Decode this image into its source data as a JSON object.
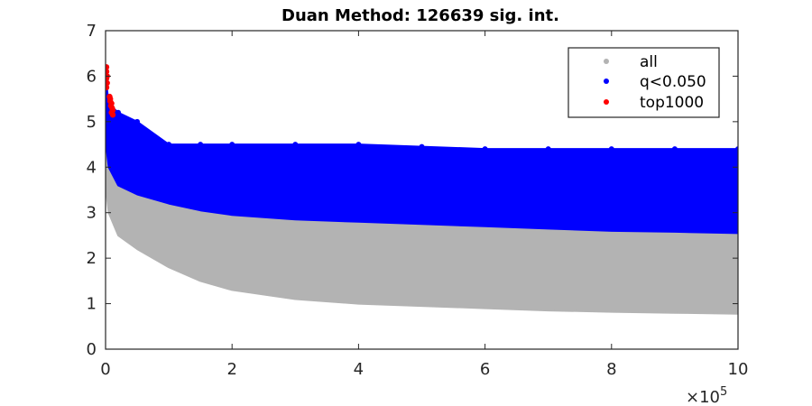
{
  "chart_data": {
    "type": "scatter",
    "title": "Duan Method: 126639 sig. int.",
    "xlabel": "",
    "ylabel": "",
    "x_multiplier_label": "×10",
    "x_multiplier_exponent": "5",
    "xlim": [
      0,
      10
    ],
    "ylim": [
      0,
      7
    ],
    "xticks": [
      "0",
      "2",
      "4",
      "6",
      "8",
      "10"
    ],
    "yticks": [
      "0",
      "1",
      "2",
      "3",
      "4",
      "5",
      "6",
      "7"
    ],
    "legend_position": "top-right",
    "grid": false,
    "series": [
      {
        "name": "all",
        "color": "#b3b3b3",
        "band": {
          "x": [
            0.0,
            0.05,
            0.2,
            0.5,
            1.0,
            1.5,
            2.0,
            3.0,
            4.0,
            5.0,
            6.0,
            7.0,
            8.0,
            9.0,
            10.0
          ],
          "lower": [
            3.6,
            3.0,
            2.5,
            2.2,
            1.8,
            1.5,
            1.3,
            1.1,
            1.0,
            0.95,
            0.9,
            0.85,
            0.82,
            0.8,
            0.78
          ],
          "upper": [
            5.0,
            4.4,
            4.0,
            3.6,
            3.3,
            3.1,
            3.0,
            2.9,
            2.8,
            2.75,
            2.7,
            2.65,
            2.6,
            2.58,
            2.55
          ]
        }
      },
      {
        "name": "q<0.050",
        "color": "#0000ff",
        "band": {
          "x": [
            0.0,
            0.05,
            0.2,
            0.5,
            1.0,
            1.5,
            2.0,
            3.0,
            4.0,
            5.0,
            6.0,
            7.0,
            8.0,
            9.0,
            10.0
          ],
          "lower": [
            4.6,
            4.0,
            3.6,
            3.4,
            3.2,
            3.05,
            2.95,
            2.85,
            2.8,
            2.75,
            2.7,
            2.65,
            2.6,
            2.58,
            2.55
          ],
          "upper": [
            6.0,
            5.4,
            5.2,
            5.0,
            4.5,
            4.5,
            4.5,
            4.5,
            4.5,
            4.45,
            4.4,
            4.4,
            4.4,
            4.4,
            4.4
          ]
        }
      },
      {
        "name": "top1000",
        "color": "#ff0000",
        "points": [
          [
            0.0,
            6.2
          ],
          [
            0.0,
            6.1
          ],
          [
            0.01,
            6.0
          ],
          [
            0.0,
            5.95
          ],
          [
            0.01,
            5.85
          ],
          [
            0.0,
            5.75
          ],
          [
            0.05,
            5.55
          ],
          [
            0.06,
            5.45
          ],
          [
            0.08,
            5.4
          ],
          [
            0.07,
            5.35
          ],
          [
            0.09,
            5.3
          ],
          [
            0.1,
            5.25
          ],
          [
            0.08,
            5.2
          ],
          [
            0.1,
            5.15
          ],
          [
            0.06,
            5.5
          ]
        ]
      }
    ]
  }
}
